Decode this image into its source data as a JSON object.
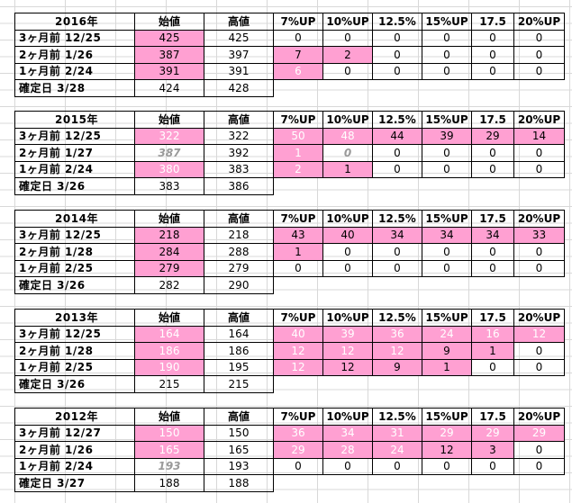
{
  "columns": [
    "始値",
    "高値",
    "7%UP",
    "10%UP",
    "12.5%",
    "15%UP",
    "17.5",
    "20%UP"
  ],
  "blocks": [
    {
      "year": "2016年",
      "rows": [
        {
          "label": "3ヶ月前 12/25",
          "open": "425",
          "high": "425",
          "ups": [
            "0",
            "0",
            "0",
            "0",
            "0",
            "0"
          ]
        },
        {
          "label": "2ヶ月前  1/26",
          "open": "387",
          "high": "397",
          "ups": [
            "7",
            "2",
            "0",
            "0",
            "0",
            "0"
          ]
        },
        {
          "label": "1ヶ月前  2/24",
          "open": "391",
          "high": "391",
          "ups": [
            "6",
            "0",
            "0",
            "0",
            "0",
            "0"
          ]
        },
        {
          "label": "確定日  3/28",
          "open": "424",
          "high": "428"
        }
      ]
    },
    {
      "year": "2015年",
      "rows": [
        {
          "label": "3ヶ月前 12/25",
          "open": "322",
          "high": "322",
          "ups": [
            "50",
            "48",
            "44",
            "39",
            "29",
            "14"
          ]
        },
        {
          "label": "2ヶ月前  1/27",
          "open": "387",
          "high": "392",
          "ups": [
            "1",
            "0",
            "0",
            "0",
            "0",
            "0"
          ]
        },
        {
          "label": "1ヶ月前  2/24",
          "open": "380",
          "high": "383",
          "ups": [
            "2",
            "1",
            "0",
            "0",
            "0",
            "0"
          ]
        },
        {
          "label": "確定日  3/26",
          "open": "383",
          "high": "386"
        }
      ]
    },
    {
      "year": "2014年",
      "rows": [
        {
          "label": "3ヶ月前 12/25",
          "open": "218",
          "high": "218",
          "ups": [
            "43",
            "40",
            "34",
            "34",
            "34",
            "33"
          ]
        },
        {
          "label": "2ヶ月前  1/28",
          "open": "284",
          "high": "288",
          "ups": [
            "1",
            "0",
            "0",
            "0",
            "0",
            "0"
          ]
        },
        {
          "label": "1ヶ月前  2/25",
          "open": "279",
          "high": "279",
          "ups": [
            "0",
            "0",
            "0",
            "0",
            "0",
            "0"
          ]
        },
        {
          "label": "確定日  3/26",
          "open": "282",
          "high": "290"
        }
      ]
    },
    {
      "year": "2013年",
      "rows": [
        {
          "label": "3ヶ月前 12/25",
          "open": "164",
          "high": "164",
          "ups": [
            "40",
            "39",
            "36",
            "24",
            "16",
            "12"
          ]
        },
        {
          "label": "2ヶ月前  1/28",
          "open": "186",
          "high": "186",
          "ups": [
            "12",
            "12",
            "12",
            "9",
            "1",
            "0"
          ]
        },
        {
          "label": "1ヶ月前  2/25",
          "open": "190",
          "high": "195",
          "ups": [
            "12",
            "12",
            "9",
            "1",
            "0",
            "0"
          ]
        },
        {
          "label": "確定日  3/26",
          "open": "215",
          "high": "215"
        }
      ]
    },
    {
      "year": "2012年",
      "rows": [
        {
          "label": "3ヶ月前 12/27",
          "open": "150",
          "high": "150",
          "ups": [
            "36",
            "34",
            "31",
            "29",
            "29",
            "29"
          ]
        },
        {
          "label": "2ヶ月前  1/26",
          "open": "165",
          "high": "165",
          "ups": [
            "29",
            "28",
            "24",
            "12",
            "3",
            "0"
          ]
        },
        {
          "label": "1ヶ月前  2/24",
          "open": "193",
          "high": "193",
          "ups": [
            "0",
            "0",
            "0",
            "0",
            "0",
            "0"
          ]
        },
        {
          "label": "確定日  3/27",
          "open": "188",
          "high": "188"
        }
      ]
    }
  ],
  "colors": {
    "highlight": "#ffa0d2",
    "grid": "#d8d8d8",
    "ghost": "#9a9a9a"
  }
}
